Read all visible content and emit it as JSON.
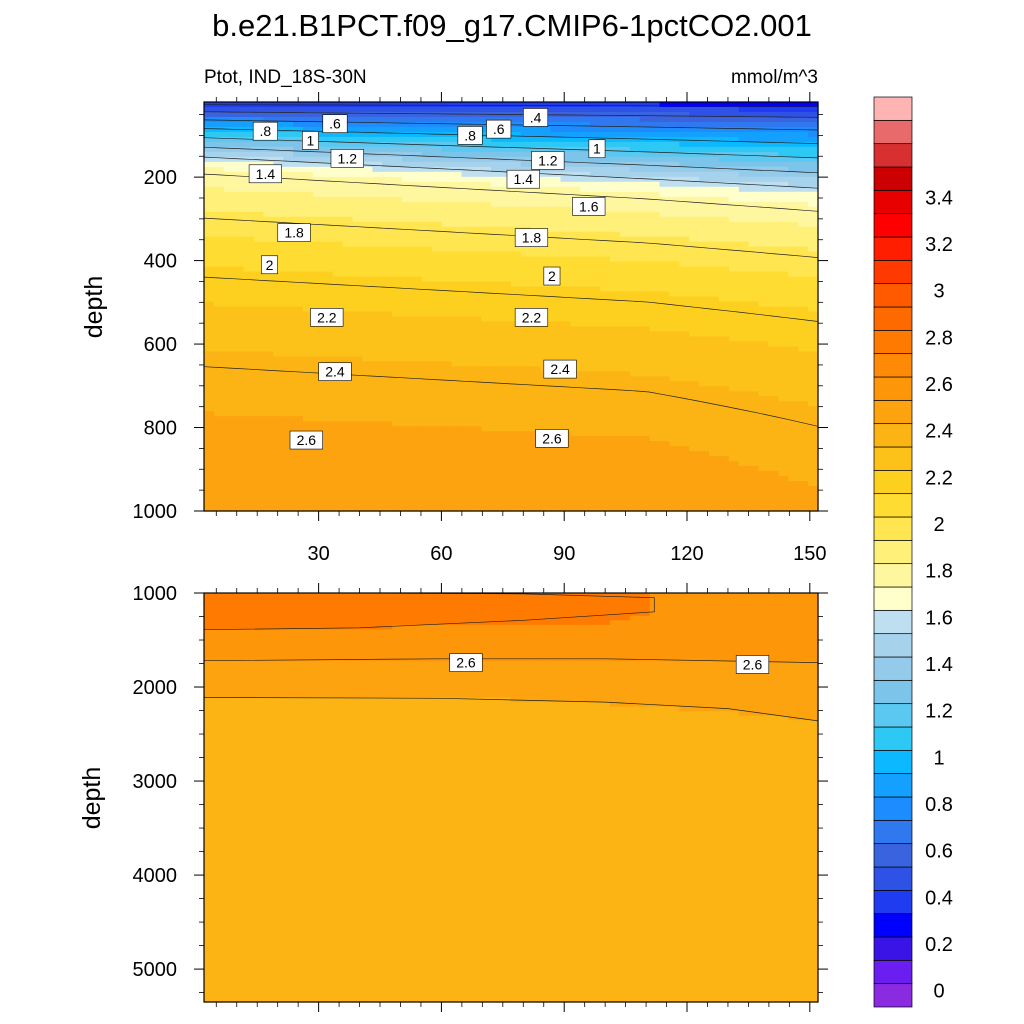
{
  "title": "b.e21.B1PCT.f09_g17.CMIP6-1pctCO2.001",
  "subtitle_left": "Ptot, IND_18S-30N",
  "subtitle_right": "mmol/m^3",
  "chart_data": [
    {
      "type": "heatmap",
      "panel": "upper",
      "xlabel": "",
      "ylabel": "depth",
      "xlim": [
        2,
        152
      ],
      "ylim": [
        1000,
        20
      ],
      "y_inverted": true,
      "x_ticks": [
        30,
        60,
        90,
        120,
        150
      ],
      "x_tick_labels": [
        "30",
        "60",
        "90",
        "120",
        "150"
      ],
      "y_ticks": [
        200,
        400,
        600,
        800,
        1000
      ],
      "y_tick_labels": [
        "200",
        "400",
        "600",
        "800",
        "1000"
      ],
      "contour_labels": [
        {
          "text": ".8",
          "x": 17,
          "y": 90
        },
        {
          "text": ".6",
          "x": 34,
          "y": 72
        },
        {
          "text": "1",
          "x": 28,
          "y": 112
        },
        {
          "text": "1.2",
          "x": 37,
          "y": 155
        },
        {
          "text": "1.4",
          "x": 17,
          "y": 192
        },
        {
          "text": ".8",
          "x": 67,
          "y": 100
        },
        {
          "text": ".6",
          "x": 74,
          "y": 85
        },
        {
          "text": ".4",
          "x": 83,
          "y": 57
        },
        {
          "text": "1",
          "x": 98,
          "y": 132
        },
        {
          "text": "1.2",
          "x": 86,
          "y": 160
        },
        {
          "text": "1.4",
          "x": 80,
          "y": 205
        },
        {
          "text": "1.6",
          "x": 96,
          "y": 270
        },
        {
          "text": "1.8",
          "x": 24,
          "y": 333
        },
        {
          "text": "1.8",
          "x": 82,
          "y": 345
        },
        {
          "text": "2",
          "x": 18,
          "y": 410
        },
        {
          "text": "2",
          "x": 87,
          "y": 437
        },
        {
          "text": "2.2",
          "x": 32,
          "y": 536
        },
        {
          "text": "2.2",
          "x": 82,
          "y": 536
        },
        {
          "text": "2.4",
          "x": 34,
          "y": 666
        },
        {
          "text": "2.4",
          "x": 89,
          "y": 660
        },
        {
          "text": "2.6",
          "x": 27,
          "y": 830
        },
        {
          "text": "2.6",
          "x": 87,
          "y": 826
        }
      ]
    },
    {
      "type": "heatmap",
      "panel": "lower",
      "xlabel": "",
      "ylabel": "depth",
      "xlim": [
        2,
        152
      ],
      "ylim": [
        5350,
        1000
      ],
      "y_inverted": true,
      "x_ticks": [
        30,
        60,
        90,
        120,
        150
      ],
      "y_ticks": [
        1000,
        2000,
        3000,
        4000,
        5000
      ],
      "y_tick_labels": [
        "1000",
        "2000",
        "3000",
        "4000",
        "5000"
      ],
      "contour_labels": [
        {
          "text": "2.6",
          "x": 66,
          "y": 1740
        },
        {
          "text": "2.6",
          "x": 136,
          "y": 1760
        }
      ]
    }
  ],
  "colorbar": {
    "levels": [
      "0",
      "0.2",
      "0.4",
      "0.6",
      "0.8",
      "1",
      "1.2",
      "1.4",
      "1.6",
      "1.8",
      "2",
      "2.2",
      "2.4",
      "2.6",
      "2.8",
      "3",
      "3.2",
      "3.4"
    ],
    "colors": [
      "#8a2be2",
      "#6a1ff0",
      "#3a14e6",
      "#0000ff",
      "#1f3cf0",
      "#2e52e6",
      "#3a63e0",
      "#2f78f0",
      "#1d8cff",
      "#14a0ff",
      "#0cb8ff",
      "#2ec8f5",
      "#5ac8f0",
      "#7dc4ea",
      "#95cbea",
      "#a6d2ec",
      "#bddff0",
      "#ffffcc",
      "#fff7a0",
      "#fff07a",
      "#ffe650",
      "#fedc32",
      "#fdd020",
      "#fcc21a",
      "#fbb414",
      "#fca30f",
      "#fe960a",
      "#ff8a06",
      "#ff7a00",
      "#ff6a00",
      "#ff5a00",
      "#ff3a00",
      "#ff1e00",
      "#ff0000",
      "#e80000",
      "#cc0000",
      "#d83030",
      "#e86a6a",
      "#ffb4b4"
    ],
    "tick_labels": [
      "0",
      "0.2",
      "0.4",
      "0.6",
      "0.8",
      "1",
      "1.2",
      "1.4",
      "1.6",
      "1.8",
      "2",
      "2.2",
      "2.4",
      "2.6",
      "2.8",
      "3",
      "3.2",
      "3.4"
    ]
  }
}
